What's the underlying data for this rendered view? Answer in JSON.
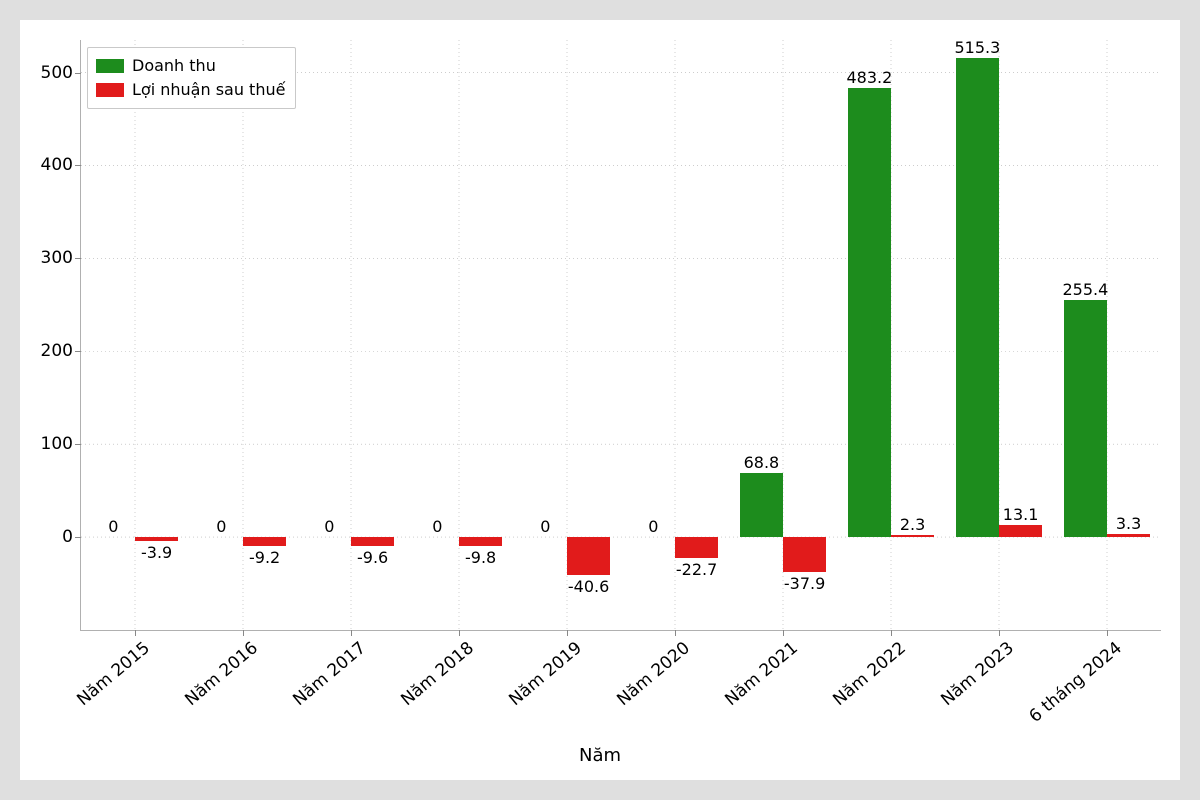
{
  "chart": {
    "type": "grouped-bar",
    "background_color": "#ffffff",
    "page_background": "#dfdfdf",
    "grid_color": "#b0b0b0",
    "grid_dash": "1 3",
    "axis_color": "#b0b0b0",
    "text_color": "#000000",
    "label_fontsize": 17,
    "value_fontsize": 16,
    "xlabel": "Năm",
    "xlabel_fontsize": 18,
    "ylim_min": -100,
    "ylim_max": 535,
    "yticks": [
      0,
      100,
      200,
      300,
      400,
      500
    ],
    "categories": [
      "Năm 2015",
      "Năm 2016",
      "Năm 2017",
      "Năm 2018",
      "Năm 2019",
      "Năm 2020",
      "Năm 2021",
      "Năm 2022",
      "Năm 2023",
      "6 tháng 2024"
    ],
    "xtick_rotation_deg": 40,
    "bar_group_width": 0.8,
    "series": [
      {
        "name": "Doanh thu",
        "color": "#1d8c1d",
        "values": [
          0,
          0,
          0,
          0,
          0,
          0,
          68.8,
          483.2,
          515.3,
          255.4
        ]
      },
      {
        "name": "Lợi nhuận sau thuế",
        "color": "#e11b1b",
        "values": [
          -3.9,
          -9.2,
          -9.6,
          -9.8,
          -40.6,
          -22.7,
          -37.9,
          2.3,
          13.1,
          3.3
        ]
      }
    ],
    "legend": {
      "position": "upper-left",
      "items": [
        "Doanh thu",
        "Lợi nhuận sau thuế"
      ]
    }
  }
}
